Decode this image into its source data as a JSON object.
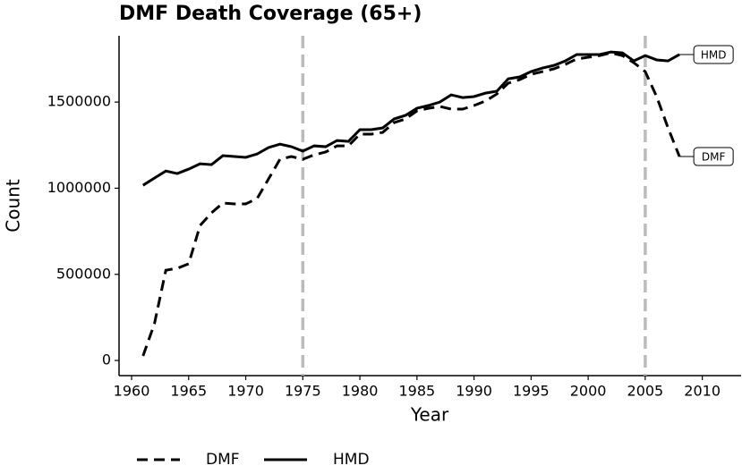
{
  "chart_data": {
    "type": "line",
    "title": "DMF Death Coverage (65+)",
    "x_label": "Year",
    "y_label": "Count",
    "x": [
      1961,
      1962,
      1963,
      1964,
      1965,
      1966,
      1967,
      1968,
      1969,
      1970,
      1971,
      1972,
      1973,
      1974,
      1975,
      1976,
      1977,
      1978,
      1979,
      1980,
      1981,
      1982,
      1983,
      1984,
      1985,
      1986,
      1987,
      1988,
      1989,
      1990,
      1991,
      1992,
      1993,
      1994,
      1995,
      1996,
      1997,
      1998,
      1999,
      2000,
      2001,
      2002,
      2003,
      2004,
      2005,
      2006,
      2007,
      2008
    ],
    "series": [
      {
        "name": "DMF",
        "color": "#000000",
        "linestyle": "dashed",
        "values": [
          26000,
          213000,
          524000,
          535000,
          561000,
          784000,
          857000,
          914000,
          909000,
          909000,
          940000,
          1054000,
          1168000,
          1184000,
          1168000,
          1194000,
          1210000,
          1246000,
          1246000,
          1314000,
          1314000,
          1324000,
          1381000,
          1402000,
          1449000,
          1464000,
          1475000,
          1459000,
          1459000,
          1480000,
          1506000,
          1547000,
          1610000,
          1630000,
          1661000,
          1677000,
          1693000,
          1719000,
          1750000,
          1760000,
          1770000,
          1786000,
          1770000,
          1729000,
          1677000,
          1532000,
          1350000,
          1184000
        ]
      },
      {
        "name": "HMD",
        "color": "#000000",
        "linestyle": "solid",
        "values": [
          1017000,
          1059000,
          1100000,
          1085000,
          1111000,
          1142000,
          1137000,
          1189000,
          1184000,
          1179000,
          1199000,
          1236000,
          1256000,
          1241000,
          1215000,
          1246000,
          1241000,
          1277000,
          1272000,
          1340000,
          1340000,
          1350000,
          1402000,
          1423000,
          1464000,
          1480000,
          1500000,
          1542000,
          1526000,
          1532000,
          1552000,
          1563000,
          1635000,
          1646000,
          1677000,
          1698000,
          1713000,
          1739000,
          1776000,
          1776000,
          1776000,
          1791000,
          1786000,
          1739000,
          1770000,
          1745000,
          1739000,
          1776000
        ]
      }
    ],
    "vlines": [
      1975,
      2005
    ],
    "vline_color": "#bbbbbb",
    "xlim": [
      1958.9,
      2013.4
    ],
    "xticks": [
      1960,
      1965,
      1970,
      1975,
      1980,
      1985,
      1990,
      1995,
      2000,
      2005,
      2010
    ],
    "ylim": [
      -88000,
      1885000
    ],
    "yticks": [
      0,
      500000,
      1000000,
      1500000
    ],
    "end_labels": true,
    "legend": "bottom"
  }
}
